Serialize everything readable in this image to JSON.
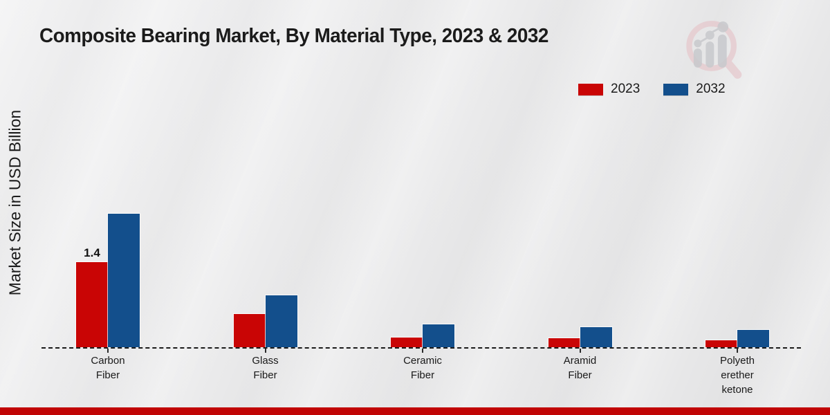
{
  "page": {
    "title": "Composite Bearing Market, By Material Type, 2023 & 2032"
  },
  "colors": {
    "series_2023": "#c90505",
    "series_2032": "#134f8c",
    "footer_banner": "#c10505",
    "baseline": "#191919",
    "background": "#eaeaea",
    "text": "#1a1a1a",
    "logo_ring_pink": "#e5c2c7",
    "logo_figure_gray": "#c8c9cd"
  },
  "legend": [
    {
      "label": "2023",
      "color": "#c90505"
    },
    {
      "label": "2032",
      "color": "#134f8c"
    }
  ],
  "chart_data": {
    "type": "bar",
    "title": "Composite Bearing Market, By Material Type, 2023 & 2032",
    "xlabel": "",
    "ylabel": "Market Size in USD Billion",
    "unit": "USD Billion",
    "categories": [
      "Carbon Fiber",
      "Glass Fiber",
      "Ceramic Fiber",
      "Aramid Fiber",
      "Polyetheretherketone"
    ],
    "category_label_lines": [
      [
        "Carbon",
        "Fiber"
      ],
      [
        "Glass",
        "Fiber"
      ],
      [
        "Ceramic",
        "Fiber"
      ],
      [
        "Aramid",
        "Fiber"
      ],
      [
        "Polyeth",
        "erether",
        "ketone"
      ]
    ],
    "series": [
      {
        "name": "2023",
        "color": "#c90505",
        "values": [
          1.4,
          0.55,
          0.16,
          0.15,
          0.11
        ]
      },
      {
        "name": "2032",
        "color": "#134f8c",
        "values": [
          2.2,
          0.85,
          0.37,
          0.33,
          0.28
        ]
      }
    ],
    "data_labels": [
      {
        "series": "2023",
        "category": "Carbon Fiber",
        "text": "1.4"
      }
    ],
    "ylim": [
      0,
      2.6
    ],
    "grid": false,
    "baseline_style": "dashed",
    "legend_position": "top-right"
  }
}
